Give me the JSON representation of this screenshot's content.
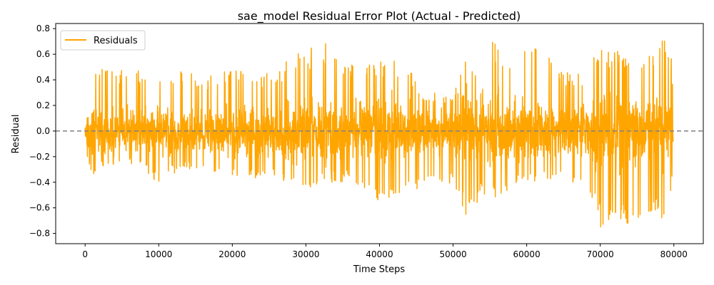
{
  "chart_data": {
    "type": "line",
    "title": "sae_model Residual Error Plot (Actual - Predicted)",
    "xlabel": "Time Steps",
    "ylabel": "Residual",
    "xlim": [
      -4000,
      84000
    ],
    "ylim": [
      -0.88,
      0.84
    ],
    "xticks": [
      0,
      10000,
      20000,
      30000,
      40000,
      50000,
      60000,
      70000,
      80000
    ],
    "yticks": [
      -0.8,
      -0.6,
      -0.4,
      -0.2,
      0.0,
      0.2,
      0.4,
      0.6,
      0.8
    ],
    "xtick_labels": [
      "0",
      "10000",
      "20000",
      "30000",
      "40000",
      "50000",
      "60000",
      "70000",
      "80000"
    ],
    "ytick_labels": [
      "−0.8",
      "−0.6",
      "−0.4",
      "−0.2",
      "0.0",
      "0.2",
      "0.4",
      "0.6",
      "0.8"
    ],
    "series": [
      {
        "name": "Residuals",
        "color": "#FFA500",
        "x_start": 0,
        "x_end": 79900,
        "envelope": {
          "x": [
            0,
            700,
            3000,
            5000,
            8000,
            10000,
            13000,
            16000,
            20000,
            24000,
            27000,
            28500,
            30000,
            32000,
            34000,
            36000,
            38000,
            40000,
            42000,
            44000,
            46000,
            48000,
            50000,
            52000,
            54000,
            55000,
            58000,
            60000,
            62000,
            64000,
            66000,
            68000,
            69000,
            70000,
            72000,
            74000,
            76000,
            78000,
            79500,
            79900
          ],
          "upper": [
            0.12,
            0.49,
            0.5,
            0.48,
            0.47,
            0.45,
            0.5,
            0.42,
            0.48,
            0.45,
            0.52,
            0.62,
            0.6,
            0.75,
            0.6,
            0.52,
            0.58,
            0.55,
            0.55,
            0.5,
            0.3,
            0.3,
            0.27,
            0.62,
            0.35,
            0.74,
            0.6,
            0.65,
            0.68,
            0.5,
            0.45,
            0.48,
            0.6,
            0.64,
            0.66,
            0.6,
            0.55,
            0.7,
            0.74,
            0.3
          ],
          "lower": [
            -0.12,
            -0.35,
            -0.27,
            -0.25,
            -0.3,
            -0.42,
            -0.3,
            -0.32,
            -0.35,
            -0.38,
            -0.4,
            -0.48,
            -0.45,
            -0.42,
            -0.4,
            -0.4,
            -0.45,
            -0.55,
            -0.5,
            -0.52,
            -0.45,
            -0.45,
            -0.4,
            -0.73,
            -0.5,
            -0.55,
            -0.45,
            -0.38,
            -0.4,
            -0.4,
            -0.42,
            -0.5,
            -0.6,
            -0.75,
            -0.78,
            -0.75,
            -0.72,
            -0.7,
            -0.62,
            -0.28
          ]
        }
      }
    ],
    "reference_line": {
      "y": 0.0,
      "color": "#808080",
      "style": "dashed"
    },
    "legend": {
      "position": "top-left",
      "entries": [
        "Residuals"
      ]
    },
    "grid": false
  }
}
